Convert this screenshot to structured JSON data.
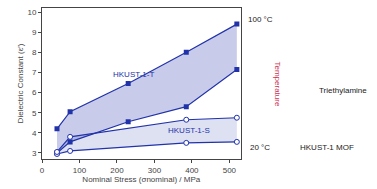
{
  "chart_data": {
    "type": "line",
    "xlabel": "Nominal Stress (σnominal) / MPa",
    "ylabel": "Dielectric Constant (ε′)",
    "xlim": [
      0,
      530
    ],
    "ylim": [
      2.7,
      10.2
    ],
    "xticks": [
      0,
      100,
      200,
      300,
      400,
      500
    ],
    "yticks": [
      3,
      4,
      5,
      6,
      7,
      8,
      9,
      10
    ],
    "grid": false,
    "series": [
      {
        "x": [
          40,
          75,
          230,
          385,
          520
        ],
        "values": [
          4.2,
          5.05,
          6.45,
          8.0,
          9.4
        ],
        "lower": [
          3.0,
          3.55,
          4.55,
          5.3,
          7.15
        ],
        "color": "#2233aa",
        "marker": "square"
      },
      {
        "x": [
          40,
          75,
          385,
          520
        ],
        "values": [
          3.05,
          3.8,
          4.65,
          4.75
        ],
        "lower": [
          2.95,
          3.1,
          3.5,
          3.55
        ],
        "color": "#2233aa",
        "marker": "open circle"
      }
    ],
    "annotations": [
      {
        "text": "HKUST-1-T",
        "x": 185,
        "y": 6.55,
        "color": "#2233aa"
      },
      {
        "text": "HKUST-1-S",
        "x": 330,
        "y": 3.78,
        "color": "#2233aa"
      }
    ],
    "panel_texts": [
      {
        "text": "100 °C",
        "color": "#222222"
      },
      {
        "text": "20 °C",
        "color": "#222222"
      },
      {
        "text": "Temperature",
        "color": "#cc3355"
      },
      {
        "text": "Triethylamine",
        "color": "#222222"
      },
      {
        "text": "HKUST-1 MOF",
        "color": "#222222"
      }
    ]
  }
}
